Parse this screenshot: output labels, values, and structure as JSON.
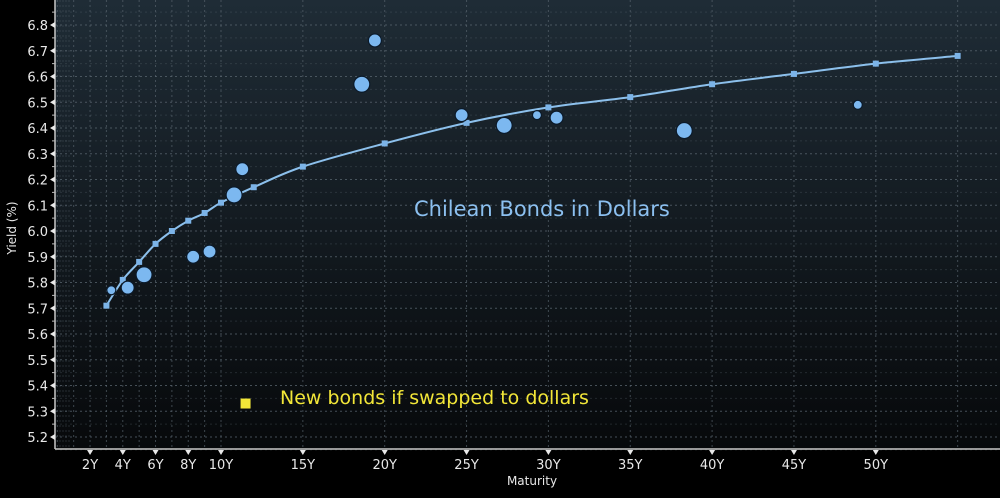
{
  "chart_data": {
    "type": "scatter",
    "title": "",
    "xlabel": "Maturity",
    "ylabel": "Yield (%)",
    "xlim": [
      -0.1,
      57
    ],
    "ylim": [
      5.15,
      6.87
    ],
    "grid": true,
    "legend": "none",
    "x_ticks": [
      {
        "value": 2,
        "label": "2Y"
      },
      {
        "value": 4,
        "label": "4Y"
      },
      {
        "value": 6,
        "label": "6Y"
      },
      {
        "value": 8,
        "label": "8Y"
      },
      {
        "value": 10,
        "label": "10Y"
      },
      {
        "value": 15,
        "label": "15Y"
      },
      {
        "value": 20,
        "label": "20Y"
      },
      {
        "value": 25,
        "label": "25Y"
      },
      {
        "value": 30,
        "label": "30Y"
      },
      {
        "value": 35,
        "label": "35Y"
      },
      {
        "value": 40,
        "label": "40Y"
      },
      {
        "value": 45,
        "label": "45Y"
      },
      {
        "value": 50,
        "label": "50Y"
      }
    ],
    "y_ticks": [
      5.2,
      5.3,
      5.4,
      5.5,
      5.6,
      5.7,
      5.8,
      5.9,
      6.0,
      6.1,
      6.2,
      6.3,
      6.4,
      6.5,
      6.6,
      6.7,
      6.8
    ],
    "y_tick_labels": [
      "5.2",
      "5.3",
      "5.4",
      "5.5",
      "5.6",
      "5.7",
      "5.8",
      "5.9",
      "6.0",
      "6.1",
      "6.2",
      "6.3",
      "6.4",
      "6.5",
      "6.6",
      "6.7",
      "6.8"
    ],
    "series": [
      {
        "name": "Chilean Bonds in Dollars (fitted curve)",
        "kind": "line",
        "color": "#8cc0ec",
        "marker": "square",
        "points": [
          [
            3,
            5.71
          ],
          [
            4,
            5.81
          ],
          [
            5,
            5.88
          ],
          [
            6,
            5.95
          ],
          [
            7,
            6.0
          ],
          [
            8,
            6.04
          ],
          [
            9,
            6.07
          ],
          [
            10,
            6.11
          ],
          [
            12,
            6.17
          ],
          [
            15,
            6.25
          ],
          [
            20,
            6.34
          ],
          [
            25,
            6.42
          ],
          [
            30,
            6.48
          ],
          [
            35,
            6.52
          ],
          [
            40,
            6.57
          ],
          [
            45,
            6.61
          ],
          [
            50,
            6.65
          ],
          [
            55,
            6.68
          ]
        ]
      },
      {
        "name": "Chilean Bonds in Dollars (bonds)",
        "kind": "bubble",
        "color": "#7cb8f0",
        "points": [
          {
            "x": 3.3,
            "y": 5.77,
            "size": "small"
          },
          {
            "x": 4.3,
            "y": 5.78,
            "size": "medium"
          },
          {
            "x": 5.3,
            "y": 5.83,
            "size": "large"
          },
          {
            "x": 8.3,
            "y": 5.9,
            "size": "medium"
          },
          {
            "x": 9.3,
            "y": 5.92,
            "size": "medium"
          },
          {
            "x": 10.8,
            "y": 6.14,
            "size": "large"
          },
          {
            "x": 11.3,
            "y": 6.24,
            "size": "medium"
          },
          {
            "x": 18.6,
            "y": 6.57,
            "size": "large"
          },
          {
            "x": 19.4,
            "y": 6.74,
            "size": "medium"
          },
          {
            "x": 24.7,
            "y": 6.45,
            "size": "medium"
          },
          {
            "x": 27.3,
            "y": 6.41,
            "size": "large"
          },
          {
            "x": 29.3,
            "y": 6.45,
            "size": "small"
          },
          {
            "x": 30.5,
            "y": 6.44,
            "size": "medium"
          },
          {
            "x": 38.3,
            "y": 6.39,
            "size": "large"
          },
          {
            "x": 48.9,
            "y": 6.49,
            "size": "small"
          }
        ]
      },
      {
        "name": "New bonds if swapped to dollars",
        "kind": "scatter",
        "color": "#f2e638",
        "marker": "square",
        "points": [
          [
            11.5,
            5.33
          ]
        ]
      }
    ],
    "annotations": [
      {
        "text": "Chilean Bonds in Dollars",
        "color": "#8cc0f0"
      },
      {
        "text": "New bonds if swapped to dollars",
        "color": "#f2e638"
      }
    ]
  },
  "labels": {
    "xlabel": "Maturity",
    "ylabel": "Yield (%)",
    "annotation_curve": "Chilean Bonds in Dollars",
    "annotation_new": "New bonds if swapped to dollars"
  },
  "colors": {
    "bg_top": "#1f2c36",
    "bg_bottom": "#07090b",
    "curve": "#8cc0ec",
    "bubble": "#7cb8f0",
    "new_bond": "#f2e638",
    "grid": "#5a6670",
    "axis": "#c8c8c8"
  }
}
